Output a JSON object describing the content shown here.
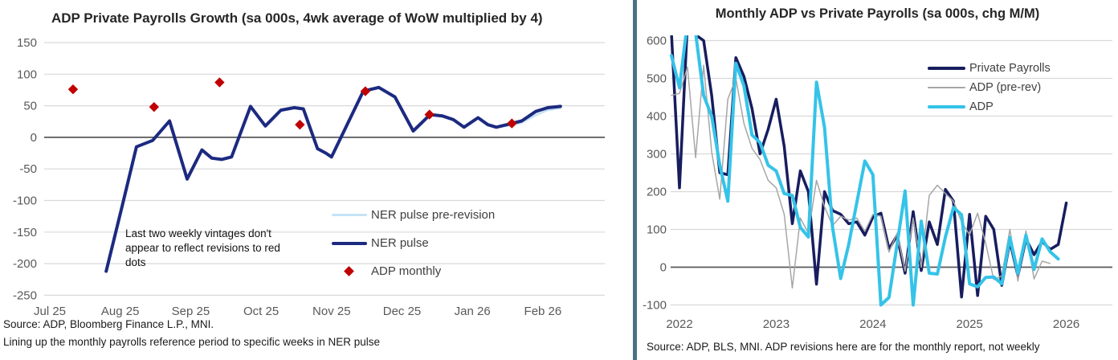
{
  "divider_color": "#4a7383",
  "left_chart": {
    "title": "ADP Private Payrolls Growth (sa 000s, 4wk average of WoW multiplied by 4)",
    "annotation": "Last two weekly vintages don't appear to reflect revisions to red dots",
    "source_line1": "Source: ADP, Bloomberg Finance L.P., MNI.",
    "source_line2": "Lining up the monthly payrolls reference period to specific weeks in NER pulse",
    "chart_data": {
      "type": "line",
      "x_unit": "months after the Jul 25 tick",
      "x_tick_labels": [
        "Jul 25",
        "Aug 25",
        "Sep 25",
        "Oct 25",
        "Nov 25",
        "Dec 25",
        "Jan 26",
        "Feb 26"
      ],
      "ylim": [
        -250,
        150
      ],
      "ytick_step": 50,
      "grid": true,
      "legend_position": "inside lower right",
      "series": [
        {
          "name": "NER pulse pre-revision",
          "color": "#c5e3f5",
          "width": 2.5,
          "points": [
            [
              0.8,
              -212
            ],
            [
              1.02,
              -112
            ],
            [
              1.23,
              -15
            ],
            [
              1.46,
              -5
            ],
            [
              1.7,
              26
            ],
            [
              1.95,
              -66
            ],
            [
              2.16,
              -20
            ],
            [
              2.3,
              -33
            ],
            [
              2.44,
              -35
            ],
            [
              2.58,
              -31
            ],
            [
              2.85,
              49
            ],
            [
              3.06,
              18
            ],
            [
              3.28,
              43
            ],
            [
              3.47,
              47
            ],
            [
              3.6,
              45
            ],
            [
              3.8,
              -18
            ],
            [
              3.92,
              -25
            ],
            [
              4.0,
              -31
            ],
            [
              4.45,
              73
            ],
            [
              4.67,
              79
            ],
            [
              4.9,
              64
            ],
            [
              5.16,
              10
            ],
            [
              5.4,
              36
            ],
            [
              5.57,
              34
            ],
            [
              5.73,
              28
            ],
            [
              5.88,
              16
            ],
            [
              6.08,
              31
            ],
            [
              6.22,
              20
            ],
            [
              6.34,
              16
            ],
            [
              6.56,
              19
            ],
            [
              6.7,
              23
            ],
            [
              6.9,
              35
            ],
            [
              7.07,
              43
            ],
            [
              7.25,
              46
            ]
          ]
        },
        {
          "name": "NER pulse",
          "color": "#1c2a80",
          "width": 4,
          "points": [
            [
              0.8,
              -212
            ],
            [
              1.02,
              -112
            ],
            [
              1.23,
              -15
            ],
            [
              1.46,
              -5
            ],
            [
              1.7,
              26
            ],
            [
              1.95,
              -66
            ],
            [
              2.16,
              -20
            ],
            [
              2.3,
              -33
            ],
            [
              2.44,
              -35
            ],
            [
              2.58,
              -31
            ],
            [
              2.85,
              49
            ],
            [
              3.06,
              18
            ],
            [
              3.28,
              43
            ],
            [
              3.47,
              47
            ],
            [
              3.6,
              45
            ],
            [
              3.8,
              -18
            ],
            [
              3.92,
              -25
            ],
            [
              4.0,
              -31
            ],
            [
              4.45,
              73
            ],
            [
              4.67,
              79
            ],
            [
              4.9,
              64
            ],
            [
              5.16,
              10
            ],
            [
              5.4,
              36
            ],
            [
              5.57,
              34
            ],
            [
              5.73,
              28
            ],
            [
              5.88,
              16
            ],
            [
              6.08,
              31
            ],
            [
              6.22,
              20
            ],
            [
              6.34,
              16
            ],
            [
              6.56,
              22
            ],
            [
              6.7,
              26
            ],
            [
              6.9,
              41
            ],
            [
              7.07,
              47
            ],
            [
              7.25,
              49
            ]
          ]
        },
        {
          "name": "ADP monthly",
          "color": "#c00000",
          "marker": "diamond",
          "points": [
            [
              0.33,
              76
            ],
            [
              1.48,
              48
            ],
            [
              2.41,
              87
            ],
            [
              3.55,
              20
            ],
            [
              4.48,
              73
            ],
            [
              5.39,
              36
            ],
            [
              6.56,
              22
            ]
          ]
        }
      ]
    }
  },
  "right_chart": {
    "title": "Monthly ADP vs Private Payrolls (sa 000s, chg M/M)",
    "source": "Source: ADP, BLS, MNI. ADP revisions here are for the monthly report, not weekly",
    "chart_data": {
      "type": "line",
      "x_unit": "months after the 2022 tick (first point one month before)",
      "x_tick_labels": [
        "2022",
        "2023",
        "2024",
        "2025",
        "2026"
      ],
      "ylim": [
        -100,
        600
      ],
      "ytick_step": 100,
      "grid": true,
      "legend_position": "inside upper right",
      "series": [
        {
          "name": "Private Payrolls",
          "color": "#171d5e",
          "width": 3.5,
          "start_t": -1,
          "values": [
            620,
            210,
            650,
            615,
            600,
            455,
            250,
            245,
            555,
            505,
            420,
            300,
            365,
            445,
            320,
            115,
            255,
            200,
            -45,
            200,
            150,
            140,
            115,
            120,
            85,
            133,
            143,
            48,
            84,
            -16,
            147,
            -9,
            120,
            60,
            206,
            175,
            -79,
            140,
            -75,
            135,
            100,
            -48,
            68,
            -23,
            75,
            33,
            68,
            47,
            60,
            170
          ]
        },
        {
          "name": "ADP (pre-rev)",
          "color": "#a6a6a6",
          "width": 1.5,
          "start_t": -1,
          "values": [
            455,
            460,
            530,
            290,
            535,
            305,
            180,
            445,
            500,
            380,
            315,
            285,
            230,
            210,
            140,
            -55,
            130,
            90,
            230,
            160,
            110,
            135,
            125,
            130,
            95,
            140,
            135,
            40,
            90,
            -10,
            130,
            0,
            190,
            217,
            195,
            175,
            120,
            86,
            143,
            63,
            -33,
            -23,
            100,
            -37,
            96,
            -31,
            16,
            10
          ]
        },
        {
          "name": "ADP",
          "color": "#35c3e8",
          "width": 4,
          "start_t": -1,
          "values": [
            560,
            475,
            650,
            620,
            455,
            400,
            270,
            175,
            540,
            480,
            350,
            330,
            270,
            255,
            195,
            190,
            105,
            80,
            490,
            370,
            105,
            -30,
            60,
            170,
            281,
            245,
            -100,
            -80,
            60,
            202,
            -100,
            122,
            -16,
            -18,
            80,
            158,
            139,
            -44,
            -52,
            -27,
            -26,
            -44,
            79,
            -16,
            85,
            -6,
            75,
            41,
            22
          ]
        }
      ]
    }
  }
}
